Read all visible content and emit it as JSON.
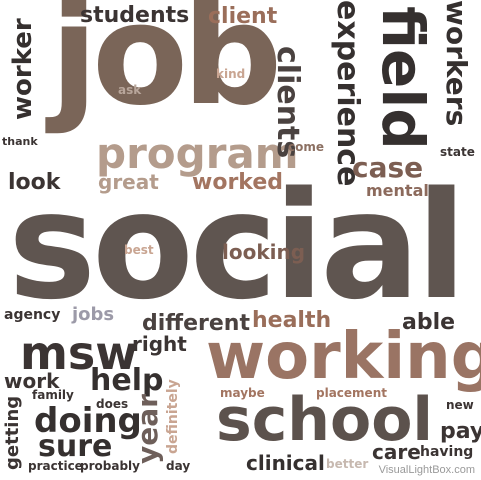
{
  "colors": {
    "dark": "#3b3433",
    "taupe": "#6e5f5a",
    "brown": "#7c5e52",
    "rust": "#a5775e",
    "tan": "#bda08c",
    "grey": "#8a8a8a",
    "light": "#c7b9b0"
  },
  "words": [
    "social",
    "job",
    "field",
    "working",
    "school",
    "msw",
    "program",
    "students",
    "client",
    "clients",
    "experience",
    "workers",
    "worker",
    "kind",
    "ask",
    "thank",
    "come",
    "state",
    "look",
    "great",
    "worked",
    "case",
    "mental",
    "best",
    "looking",
    "agency",
    "jobs",
    "different",
    "health",
    "able",
    "right",
    "work",
    "help",
    "family",
    "does",
    "doing",
    "sure",
    "year",
    "definitely",
    "getting",
    "practice",
    "probably",
    "day",
    "maybe",
    "placement",
    "new",
    "pay",
    "clinical",
    "better",
    "care",
    "having"
  ],
  "watermark": "VisualLightBox.com"
}
